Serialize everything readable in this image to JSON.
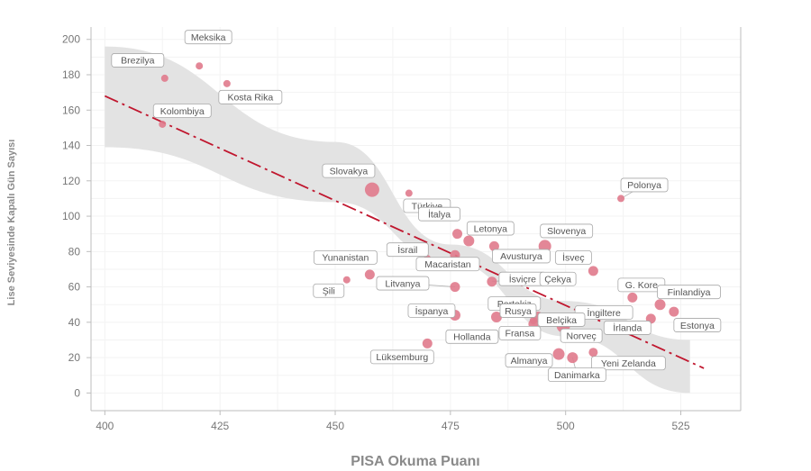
{
  "chart_data": {
    "type": "scatter",
    "title": "",
    "xlabel": "PISA Okuma Puanı",
    "ylabel": "Lise Seviyesinde Kapalı Gün Sayısı",
    "xlim": [
      397,
      538
    ],
    "ylim": [
      -10,
      207
    ],
    "xticks": [
      400,
      425,
      450,
      475,
      500,
      525
    ],
    "yticks": [
      0,
      20,
      40,
      60,
      80,
      100,
      120,
      140,
      160,
      180,
      200
    ],
    "grid": true,
    "colors": {
      "point": "#e07a8c",
      "trend": "#c0162e",
      "band": "#e3e3e3",
      "leader": "#b0b0b0"
    },
    "trend": {
      "x": [
        400,
        530
      ],
      "y": [
        168,
        14
      ]
    },
    "confidence_band": {
      "upper": [
        [
          400,
          196
        ],
        [
          450,
          142
        ],
        [
          475,
          84
        ],
        [
          500,
          52
        ],
        [
          527,
          30
        ]
      ],
      "lower": [
        [
          400,
          139
        ],
        [
          450,
          108
        ],
        [
          475,
          74
        ],
        [
          500,
          32
        ],
        [
          527,
          0
        ]
      ]
    },
    "points": [
      {
        "label": "Meksika",
        "x": 420.5,
        "y": 185,
        "size": 4
      },
      {
        "label": "Brezilya",
        "x": 413,
        "y": 178,
        "size": 4
      },
      {
        "label": "Kosta Rika",
        "x": 426.5,
        "y": 175,
        "size": 4
      },
      {
        "label": "Kolombiya",
        "x": 412.5,
        "y": 152,
        "size": 4
      },
      {
        "label": "Slovakya",
        "x": 458,
        "y": 115,
        "size": 8
      },
      {
        "label": "Türkiye",
        "x": 466,
        "y": 113,
        "size": 4
      },
      {
        "label": "Polonya",
        "x": 512,
        "y": 110,
        "size": 4
      },
      {
        "label": "İtalya",
        "x": 476.5,
        "y": 90,
        "size": 5.5
      },
      {
        "label": "Letonya",
        "x": 479,
        "y": 86,
        "size": 6
      },
      {
        "label": "Slovenya",
        "x": 495.5,
        "y": 83,
        "size": 7
      },
      {
        "label": "Avusturya",
        "x": 484.5,
        "y": 83,
        "size": 5.5
      },
      {
        "label": "İsrail",
        "x": 470,
        "y": 76,
        "size": 4
      },
      {
        "label": "Macaristan",
        "x": 476,
        "y": 78,
        "size": 5.5
      },
      {
        "label": "İsveç",
        "x": 506,
        "y": 69,
        "size": 5.5
      },
      {
        "label": "Yunanistan",
        "x": 457.5,
        "y": 67,
        "size": 5.5
      },
      {
        "label": "Şili",
        "x": 452.5,
        "y": 64,
        "size": 4
      },
      {
        "label": "Litvanya",
        "x": 476,
        "y": 60,
        "size": 5.5
      },
      {
        "label": "İsviçre",
        "x": 484,
        "y": 63,
        "size": 5.5
      },
      {
        "label": "Çekya",
        "x": 490.5,
        "y": 64,
        "size": 7
      },
      {
        "label": "G. Kore",
        "x": 514.5,
        "y": 54,
        "size": 5.5
      },
      {
        "label": "Finlandiya",
        "x": 520.5,
        "y": 50,
        "size": 6
      },
      {
        "label": "Portekiz",
        "x": 492,
        "y": 47,
        "size": 5.5
      },
      {
        "label": "İngiltere",
        "x": 504,
        "y": 44,
        "size": 5
      },
      {
        "label": "Estonya",
        "x": 523.5,
        "y": 46,
        "size": 5.5
      },
      {
        "label": "İspanya",
        "x": 476,
        "y": 44,
        "size": 6
      },
      {
        "label": "Rusya",
        "x": 485,
        "y": 43,
        "size": 6
      },
      {
        "label": "Belçika",
        "x": 494,
        "y": 43,
        "size": 6
      },
      {
        "label": "İrlanda",
        "x": 518.5,
        "y": 42,
        "size": 5.5
      },
      {
        "label": "Hollanda",
        "x": 493,
        "y": 39,
        "size": 5.5
      },
      {
        "label": "Norveç",
        "x": 499.5,
        "y": 38,
        "size": 7.5
      },
      {
        "label": "Fransa",
        "x": 493,
        "y": 41,
        "size": 4
      },
      {
        "label": "Lüksemburg",
        "x": 470,
        "y": 28,
        "size": 5.5
      },
      {
        "label": "Almanya",
        "x": 498.5,
        "y": 22,
        "size": 6.5
      },
      {
        "label": "Yeni Zelanda",
        "x": 506,
        "y": 23,
        "size": 5
      },
      {
        "label": "Danimarka",
        "x": 501.5,
        "y": 20,
        "size": 6
      }
    ]
  }
}
